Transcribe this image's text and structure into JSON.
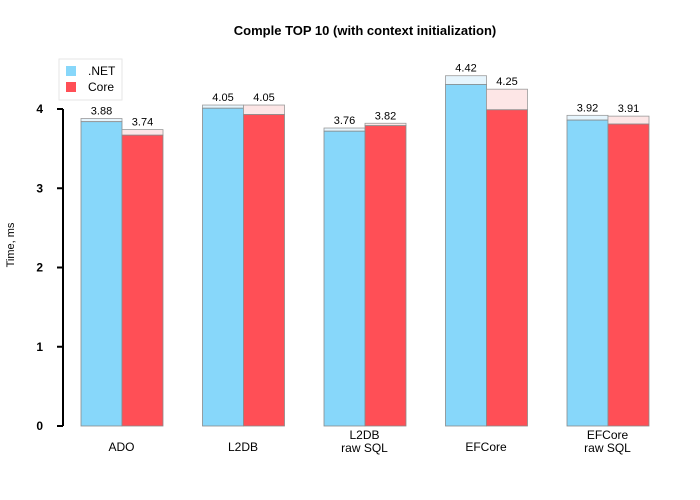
{
  "chart_data": {
    "type": "bar",
    "title": "Comple TOP 10 (with context initialization)",
    "xlabel": "",
    "ylabel": "Time, ms",
    "ylim": [
      0,
      4.6
    ],
    "yticks": [
      0,
      1,
      2,
      3,
      4
    ],
    "grid": false,
    "legend_position": "top-left",
    "categories": [
      [
        "ADO"
      ],
      [
        "L2DB"
      ],
      [
        "L2DB",
        "raw SQL"
      ],
      [
        "EFCore"
      ],
      [
        "EFCore",
        "raw SQL"
      ]
    ],
    "series": [
      {
        "name": ".NET",
        "color": "#87d7fa",
        "overlay_color": "#e6f5fd",
        "values": [
          3.84,
          4.01,
          3.72,
          4.31,
          3.86
        ],
        "totals": [
          3.88,
          4.05,
          3.76,
          4.42,
          3.92
        ],
        "labels": [
          "3.88",
          "4.05",
          "3.76",
          "4.42",
          "3.92"
        ]
      },
      {
        "name": "Core",
        "color": "#ff4f56",
        "overlay_color": "#fde6e6",
        "values": [
          3.67,
          3.93,
          3.79,
          3.99,
          3.81
        ],
        "totals": [
          3.74,
          4.05,
          3.82,
          4.25,
          3.91
        ],
        "labels": [
          "3.74",
          "4.05",
          "3.82",
          "4.25",
          "3.91"
        ]
      }
    ]
  }
}
